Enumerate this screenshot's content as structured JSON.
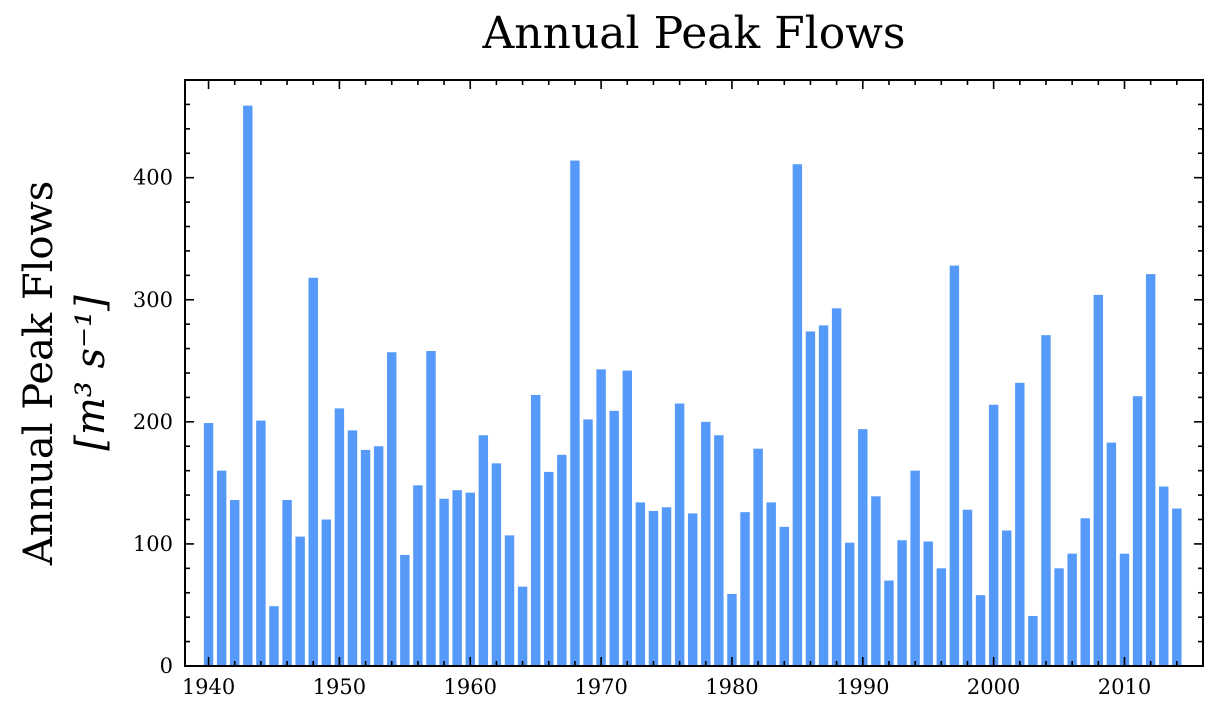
{
  "chart_data": {
    "type": "bar",
    "title": "Annual Peak Flows",
    "xlabel": "",
    "ylabel_line1": "Annual Peak Flows",
    "ylabel_line2": "[m³ s⁻¹]",
    "xlim": [
      1938.2,
      2016.0
    ],
    "ylim": [
      0,
      480
    ],
    "x_ticks": [
      1940,
      1950,
      1960,
      1970,
      1980,
      1990,
      2000,
      2010
    ],
    "x_tick_labels": [
      "1940",
      "1950",
      "1960",
      "1970",
      "1980",
      "1990",
      "2000",
      "2010"
    ],
    "y_ticks": [
      0,
      100,
      200,
      300,
      400
    ],
    "y_tick_labels": [
      "0",
      "100",
      "200",
      "300",
      "400"
    ],
    "grid": false,
    "bar_color": "#5599f9",
    "years": [
      1940,
      1941,
      1942,
      1943,
      1944,
      1945,
      1946,
      1947,
      1948,
      1949,
      1950,
      1951,
      1952,
      1953,
      1954,
      1955,
      1956,
      1957,
      1958,
      1959,
      1960,
      1961,
      1962,
      1963,
      1964,
      1965,
      1966,
      1967,
      1968,
      1969,
      1970,
      1971,
      1972,
      1973,
      1974,
      1975,
      1976,
      1977,
      1978,
      1979,
      1980,
      1981,
      1982,
      1983,
      1984,
      1985,
      1986,
      1987,
      1988,
      1989,
      1990,
      1991,
      1992,
      1993,
      1994,
      1995,
      1996,
      1997,
      1998,
      1999,
      2000,
      2001,
      2002,
      2003,
      2004,
      2005,
      2006,
      2007,
      2008,
      2009,
      2010,
      2011,
      2012,
      2013,
      2014
    ],
    "values": [
      199,
      160,
      136,
      459,
      201,
      49,
      136,
      106,
      318,
      120,
      211,
      193,
      177,
      180,
      257,
      91,
      148,
      258,
      137,
      144,
      142,
      189,
      166,
      107,
      65,
      222,
      159,
      173,
      414,
      202,
      243,
      209,
      242,
      134,
      127,
      130,
      215,
      125,
      200,
      189,
      59,
      126,
      178,
      134,
      114,
      411,
      274,
      279,
      293,
      101,
      194,
      139,
      70,
      103,
      160,
      102,
      80,
      328,
      128,
      58,
      214,
      111,
      232,
      41,
      271,
      80,
      92,
      121,
      304,
      183,
      92,
      221,
      321,
      147,
      129
    ]
  }
}
